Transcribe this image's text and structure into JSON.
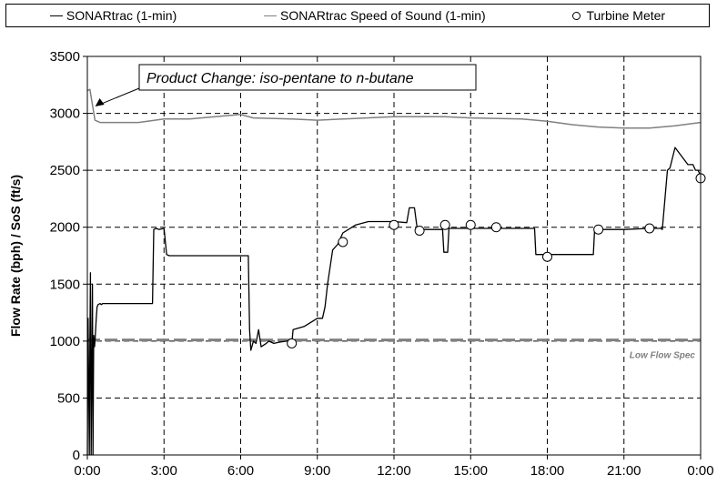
{
  "legend": {
    "series1": "SONARtrac (1-min)",
    "series2": "SONARtrac Speed of Sound (1-min)",
    "series3": "Turbine Meter"
  },
  "colors": {
    "flow": "#000000",
    "sos": "#808080",
    "spec": "#808080",
    "grid": "#000000"
  },
  "chart_data": {
    "type": "line",
    "ylabel": "Flow Rate (bph)  /  SoS (ft/s)",
    "xlabel": "",
    "x_ticks": [
      "0:00",
      "3:00",
      "6:00",
      "9:00",
      "12:00",
      "15:00",
      "18:00",
      "21:00",
      "0:00"
    ],
    "y_ticks": [
      0,
      500,
      1000,
      1500,
      2000,
      2500,
      3000,
      3500
    ],
    "xlim": [
      0,
      24
    ],
    "ylim": [
      0,
      3500
    ],
    "grid": true,
    "legend_position": "top",
    "annotations": [
      {
        "text": "Product Change: iso-pentane to n-butane",
        "x": 0.2,
        "y": 3100
      },
      {
        "text": "Low Flow Spec",
        "x": 22.5,
        "y": 900
      }
    ],
    "series": [
      {
        "name": "SONARtrac (1-min)",
        "kind": "line",
        "x": [
          0,
          0.03,
          0.08,
          0.1,
          0.12,
          0.15,
          0.2,
          0.22,
          0.25,
          0.28,
          0.3,
          0.35,
          0.38,
          0.42,
          0.5,
          0.55,
          0.6,
          1,
          1.5,
          2,
          2.55,
          2.6,
          2.7,
          2.8,
          3,
          3.1,
          3.2,
          3.5,
          4,
          5,
          6,
          6.3,
          6.35,
          6.4,
          6.5,
          6.6,
          6.7,
          6.8,
          7,
          7.1,
          7.3,
          7.5,
          7.8,
          7.9,
          8,
          8.05,
          8.5,
          9,
          9.2,
          9.3,
          9.4,
          9.6,
          9.8,
          10,
          10.5,
          11,
          11.5,
          12,
          12.5,
          12.6,
          12.8,
          12.9,
          13,
          13.5,
          13.9,
          13.95,
          14.1,
          14.15,
          14.5,
          15,
          16,
          17,
          17.5,
          17.55,
          18,
          19,
          19.8,
          19.85,
          20,
          21,
          22,
          22.45,
          22.5,
          22.7,
          22.8,
          23,
          23.5,
          23.7,
          23.8,
          23.9,
          24
        ],
        "y": [
          0,
          1200,
          0,
          1000,
          1600,
          0,
          1500,
          0,
          1050,
          950,
          1000,
          1200,
          1300,
          1320,
          1330,
          1320,
          1330,
          1330,
          1330,
          1330,
          1330,
          1980,
          1990,
          1980,
          1990,
          1760,
          1750,
          1750,
          1750,
          1750,
          1750,
          1750,
          1100,
          920,
          1000,
          980,
          1100,
          950,
          980,
          1000,
          980,
          990,
          1000,
          1000,
          980,
          1100,
          1130,
          1200,
          1200,
          1300,
          1500,
          1800,
          1850,
          1950,
          2020,
          2050,
          2050,
          2050,
          2040,
          2170,
          2170,
          2000,
          1980,
          1980,
          1980,
          1780,
          1780,
          1990,
          1990,
          1990,
          1990,
          1990,
          1990,
          1760,
          1760,
          1760,
          1760,
          1980,
          1980,
          1980,
          1990,
          1990,
          1980,
          2500,
          2520,
          2700,
          2550,
          2550,
          2500,
          2500,
          2450
        ]
      },
      {
        "name": "SONARtrac Speed of Sound (1-min)",
        "kind": "line",
        "x": [
          0,
          0.1,
          0.3,
          0.5,
          1,
          2,
          3,
          4,
          5,
          6,
          6.5,
          8,
          9,
          10,
          12,
          14,
          15,
          17,
          18,
          19,
          20,
          21,
          22,
          23,
          24
        ],
        "y": [
          3200,
          3210,
          2940,
          2920,
          2920,
          2920,
          2950,
          2950,
          2970,
          2990,
          2960,
          2950,
          2940,
          2950,
          2970,
          2970,
          2960,
          2950,
          2930,
          2900,
          2880,
          2870,
          2870,
          2890,
          2920
        ]
      },
      {
        "name": "Turbine Meter",
        "kind": "scatter",
        "x": [
          8,
          10,
          12,
          13,
          14,
          15,
          16,
          18,
          20,
          22,
          24
        ],
        "y": [
          980,
          1870,
          2020,
          1970,
          2020,
          2020,
          2000,
          1740,
          1980,
          1990,
          2430
        ]
      },
      {
        "name": "",
        "kind": "spec",
        "x": [
          0,
          24
        ],
        "y": [
          1010,
          1010
        ]
      }
    ]
  }
}
